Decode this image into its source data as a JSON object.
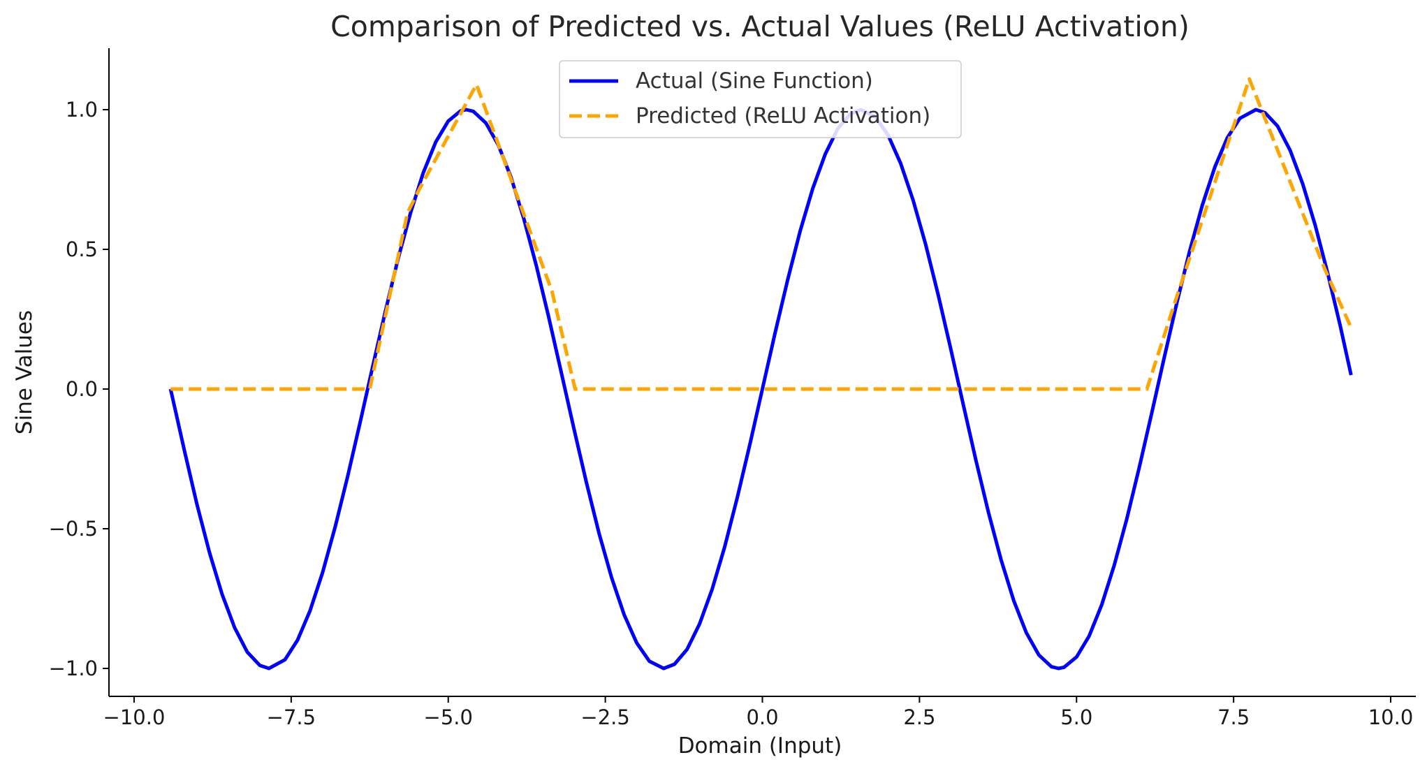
{
  "chart_data": {
    "type": "line",
    "title": "Comparison of Predicted vs. Actual Values (ReLU Activation)",
    "xlabel": "Domain (Input)",
    "ylabel": "Sine Values",
    "xlim": [
      -10.4,
      10.4
    ],
    "ylim": [
      -1.1,
      1.22
    ],
    "x_ticks": [
      -10.0,
      -7.5,
      -5.0,
      -2.5,
      0.0,
      2.5,
      5.0,
      7.5,
      10.0
    ],
    "x_tick_labels": [
      "−10.0",
      "−7.5",
      "−5.0",
      "−2.5",
      "0.0",
      "2.5",
      "5.0",
      "7.5",
      "10.0"
    ],
    "y_ticks": [
      -1.0,
      -0.5,
      0.0,
      0.5,
      1.0
    ],
    "y_tick_labels": [
      "−1.0",
      "−0.5",
      "0.0",
      "0.5",
      "1.0"
    ],
    "grid": false,
    "legend_position": "top-center",
    "series": [
      {
        "name": "Actual (Sine Function)",
        "style": "solid",
        "color": "#0000ff",
        "x": [
          -9.42,
          -9.2,
          -9.0,
          -8.8,
          -8.6,
          -8.4,
          -8.2,
          -8.0,
          -7.854,
          -7.6,
          -7.4,
          -7.2,
          -7.0,
          -6.8,
          -6.6,
          -6.4,
          -6.2,
          -6.0,
          -5.8,
          -5.6,
          -5.4,
          -5.2,
          -5.0,
          -4.8,
          -4.712,
          -4.6,
          -4.4,
          -4.2,
          -4.0,
          -3.8,
          -3.6,
          -3.4,
          -3.2,
          -3.0,
          -2.8,
          -2.6,
          -2.4,
          -2.2,
          -2.0,
          -1.8,
          -1.571,
          -1.4,
          -1.2,
          -1.0,
          -0.8,
          -0.6,
          -0.4,
          -0.2,
          0.0,
          0.2,
          0.4,
          0.6,
          0.8,
          1.0,
          1.2,
          1.4,
          1.571,
          1.8,
          2.0,
          2.2,
          2.4,
          2.6,
          2.8,
          3.0,
          3.2,
          3.4,
          3.6,
          3.8,
          4.0,
          4.2,
          4.4,
          4.6,
          4.712,
          4.8,
          5.0,
          5.2,
          5.4,
          5.6,
          5.8,
          6.0,
          6.2,
          6.4,
          6.6,
          6.8,
          7.0,
          7.2,
          7.4,
          7.6,
          7.854,
          8.0,
          8.2,
          8.4,
          8.6,
          8.8,
          9.0,
          9.2,
          9.37
        ],
        "y": [
          0.0,
          -0.219,
          -0.412,
          -0.585,
          -0.734,
          -0.854,
          -0.941,
          -0.989,
          -1.0,
          -0.969,
          -0.899,
          -0.794,
          -0.657,
          -0.494,
          -0.312,
          -0.117,
          0.083,
          0.279,
          0.465,
          0.631,
          0.773,
          0.884,
          0.959,
          0.996,
          1.0,
          0.994,
          0.952,
          0.872,
          0.757,
          0.612,
          0.443,
          0.256,
          0.058,
          -0.141,
          -0.335,
          -0.516,
          -0.675,
          -0.808,
          -0.909,
          -0.974,
          -1.0,
          -0.985,
          -0.932,
          -0.841,
          -0.717,
          -0.565,
          -0.389,
          -0.199,
          0.0,
          0.199,
          0.389,
          0.565,
          0.717,
          0.841,
          0.932,
          0.985,
          1.0,
          0.974,
          0.909,
          0.808,
          0.675,
          0.516,
          0.335,
          0.141,
          -0.058,
          -0.256,
          -0.443,
          -0.612,
          -0.757,
          -0.872,
          -0.952,
          -0.994,
          -1.0,
          -0.996,
          -0.959,
          -0.884,
          -0.773,
          -0.631,
          -0.465,
          -0.279,
          -0.083,
          0.117,
          0.312,
          0.494,
          0.657,
          0.794,
          0.899,
          0.969,
          1.0,
          0.989,
          0.941,
          0.854,
          0.734,
          0.585,
          0.412,
          0.223,
          0.05
        ]
      },
      {
        "name": "Predicted (ReLU Activation)",
        "style": "dashed",
        "color": "#ffa500",
        "x": [
          -9.42,
          -6.25,
          -5.65,
          -5.45,
          -4.55,
          -3.35,
          -2.98,
          6.12,
          6.55,
          7.75,
          8.95,
          9.37
        ],
        "y": [
          0.0,
          0.0,
          0.63,
          0.72,
          1.09,
          0.35,
          0.0,
          0.0,
          0.3,
          1.11,
          0.43,
          0.22
        ]
      }
    ]
  }
}
